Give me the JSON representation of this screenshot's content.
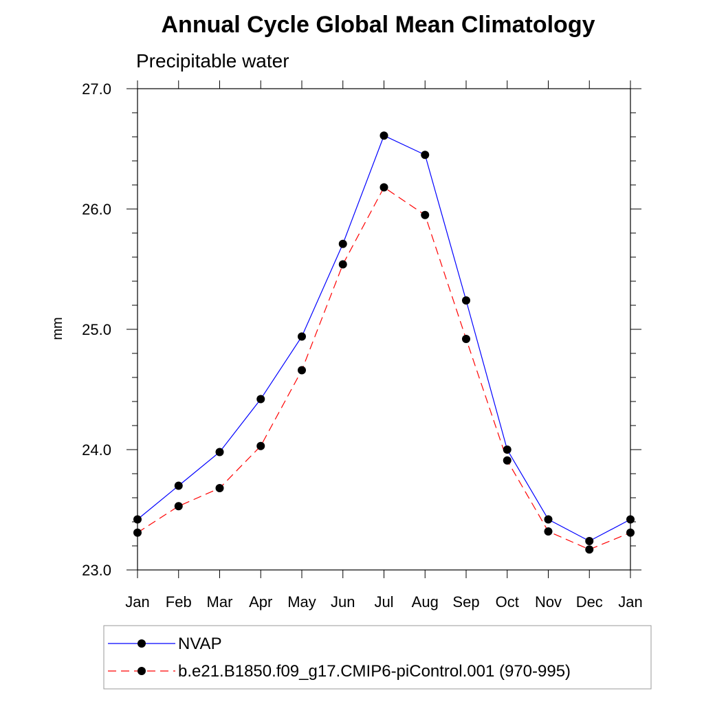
{
  "chart_data": {
    "type": "line",
    "title": "Annual Cycle Global Mean Climatology",
    "subtitle": "Precipitable water",
    "xlabel": "",
    "ylabel": "mm",
    "categories": [
      "Jan",
      "Feb",
      "Mar",
      "Apr",
      "May",
      "Jun",
      "Jul",
      "Aug",
      "Sep",
      "Oct",
      "Nov",
      "Dec",
      "Jan"
    ],
    "ylim": [
      23.0,
      27.0
    ],
    "yticks": [
      "23.0",
      "24.0",
      "25.0",
      "26.0",
      "27.0"
    ],
    "grid": false,
    "legend_position": "bottom",
    "series": [
      {
        "name": "NVAP",
        "color": "#0000ff",
        "dash": "solid",
        "marker": "filled-circle",
        "values": [
          23.42,
          23.7,
          23.98,
          24.42,
          24.94,
          25.71,
          26.61,
          26.45,
          25.24,
          24.0,
          23.42,
          23.24,
          23.42
        ]
      },
      {
        "name": "b.e21.B1850.f09_g17.CMIP6-piControl.001 (970-995)",
        "color": "#ff0000",
        "dash": "dashed",
        "marker": "filled-circle",
        "values": [
          23.31,
          23.53,
          23.68,
          24.03,
          24.66,
          25.54,
          26.18,
          25.95,
          24.92,
          23.91,
          23.32,
          23.17,
          23.31
        ]
      }
    ]
  }
}
